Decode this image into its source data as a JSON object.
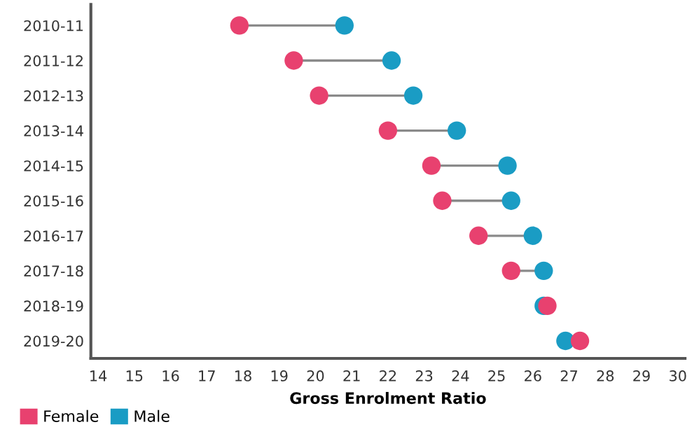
{
  "chart_data": {
    "type": "scatter",
    "orientation": "horizontal",
    "xlabel": "Gross Enrolment Ratio",
    "categories": [
      "2010-11",
      "2011-12",
      "2012-13",
      "2013-14",
      "2014-15",
      "2015-16",
      "2016-17",
      "2017-18",
      "2018-19",
      "2019-20"
    ],
    "series": [
      {
        "name": "Female",
        "color": "#e8416f",
        "values": [
          17.9,
          19.4,
          20.1,
          22.0,
          23.2,
          23.5,
          24.5,
          25.4,
          26.4,
          27.3
        ]
      },
      {
        "name": "Male",
        "color": "#1a9cc4",
        "values": [
          20.8,
          22.1,
          22.7,
          23.9,
          25.3,
          25.4,
          26.0,
          26.3,
          26.3,
          26.9
        ]
      }
    ],
    "xlim": [
      13.8,
      30.2
    ],
    "xticks": [
      14,
      15,
      16,
      17,
      18,
      19,
      20,
      21,
      22,
      23,
      24,
      25,
      26,
      27,
      28,
      29,
      30
    ],
    "grid": false,
    "legend": "bottom left",
    "marker": "circle"
  }
}
